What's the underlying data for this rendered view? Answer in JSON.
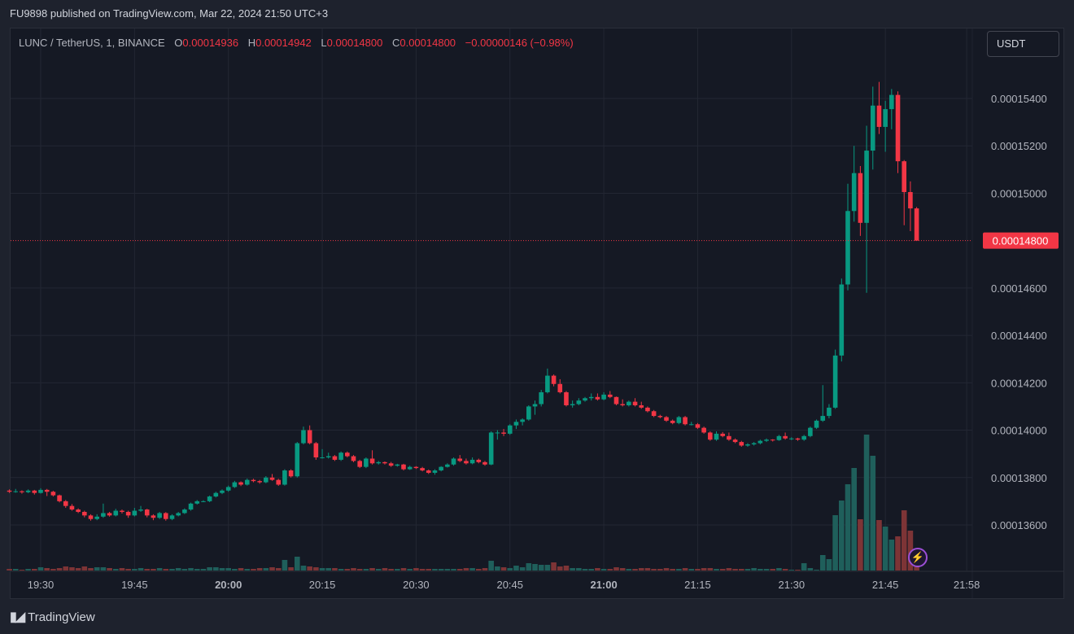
{
  "header": {
    "published": "FU9898 published on TradingView.com, Mar 22, 2024 21:50 UTC+3"
  },
  "legend": {
    "symbol": "LUNC / TetherUS, 1, BINANCE",
    "o_label": "O",
    "o": "0.00014936",
    "h_label": "H",
    "h": "0.00014942",
    "l_label": "L",
    "l": "0.00014800",
    "c_label": "C",
    "c": "0.00014800",
    "change": "−0.00000146 (−0.98%)"
  },
  "currency_button": "USDT",
  "brand": {
    "logo": "TV",
    "name": "TradingView"
  },
  "icons": {
    "alert": "lightning-icon",
    "logo": "tradingview-logo-icon"
  },
  "colors": {
    "up": "#089981",
    "down": "#f23645",
    "up_volume": "#1f5f5b",
    "down_volume": "#7d3436",
    "last_price": "#f23645",
    "background": "#151924",
    "grid": "#232733"
  },
  "chart_data": {
    "type": "candlestick",
    "interval": "1",
    "grid": true,
    "ylim": [
      0.0001341,
      0.000157
    ],
    "xlim": [
      "19:25",
      "21:58"
    ],
    "price_ticks": [
      "0.00015400",
      "0.00015200",
      "0.00015000",
      "0.00014600",
      "0.00014400",
      "0.00014200",
      "0.00014000",
      "0.00013800",
      "0.00013600"
    ],
    "time_ticks": [
      {
        "label": "19:30",
        "bold": false
      },
      {
        "label": "19:45",
        "bold": false
      },
      {
        "label": "20:00",
        "bold": true
      },
      {
        "label": "20:15",
        "bold": false
      },
      {
        "label": "20:30",
        "bold": false
      },
      {
        "label": "20:45",
        "bold": false
      },
      {
        "label": "21:00",
        "bold": true
      },
      {
        "label": "21:15",
        "bold": false
      },
      {
        "label": "21:30",
        "bold": false
      },
      {
        "label": "21:45",
        "bold": false
      },
      {
        "label": "21:58",
        "bold": false
      }
    ],
    "last_price": "0.00014800",
    "candle_fields": [
      "time",
      "open",
      "high",
      "low",
      "close",
      "volume"
    ],
    "candles": [
      [
        "19:25",
        0.00013745,
        0.0001375,
        0.00013735,
        0.0001374,
        2
      ],
      [
        "19:26",
        0.0001374,
        0.00013752,
        0.00013736,
        0.00013742,
        2
      ],
      [
        "19:27",
        0.00013742,
        0.00013746,
        0.00013732,
        0.00013738,
        1
      ],
      [
        "19:28",
        0.00013738,
        0.0001375,
        0.00013734,
        0.00013745,
        2
      ],
      [
        "19:29",
        0.00013745,
        0.00013748,
        0.00013728,
        0.00013735,
        2
      ],
      [
        "19:30",
        0.00013735,
        0.00013755,
        0.00013732,
        0.00013748,
        4
      ],
      [
        "19:31",
        0.00013748,
        0.00013752,
        0.00013722,
        0.0001374,
        3
      ],
      [
        "19:32",
        0.0001374,
        0.00013744,
        0.0001372,
        0.00013725,
        2
      ],
      [
        "19:33",
        0.00013725,
        0.00013728,
        0.00013695,
        0.000137,
        3
      ],
      [
        "19:34",
        0.000137,
        0.00013705,
        0.00013672,
        0.0001368,
        5
      ],
      [
        "19:35",
        0.0001368,
        0.00013688,
        0.0001366,
        0.00013665,
        4
      ],
      [
        "19:36",
        0.00013665,
        0.0001367,
        0.0001365,
        0.00013655,
        3
      ],
      [
        "19:37",
        0.00013655,
        0.0001366,
        0.00013632,
        0.0001364,
        5
      ],
      [
        "19:38",
        0.0001364,
        0.00013645,
        0.00013618,
        0.00013625,
        3
      ],
      [
        "19:39",
        0.00013625,
        0.00013645,
        0.0001362,
        0.00013635,
        4
      ],
      [
        "19:40",
        0.00013635,
        0.0001369,
        0.0001363,
        0.0001365,
        4
      ],
      [
        "19:41",
        0.0001365,
        0.00013655,
        0.00013635,
        0.0001364,
        3
      ],
      [
        "19:42",
        0.0001364,
        0.00013668,
        0.00013636,
        0.0001366,
        2
      ],
      [
        "19:43",
        0.0001366,
        0.00013665,
        0.00013648,
        0.00013655,
        3
      ],
      [
        "19:44",
        0.00013655,
        0.0001366,
        0.0001363,
        0.0001364,
        2
      ],
      [
        "19:45",
        0.0001364,
        0.00013672,
        0.00013636,
        0.0001366,
        2
      ],
      [
        "19:46",
        0.0001366,
        0.0001368,
        0.00013655,
        0.00013665,
        3
      ],
      [
        "19:47",
        0.00013665,
        0.00013668,
        0.00013632,
        0.0001364,
        2
      ],
      [
        "19:48",
        0.0001364,
        0.00013645,
        0.0001362,
        0.0001363,
        2
      ],
      [
        "19:49",
        0.0001363,
        0.00013655,
        0.00013625,
        0.0001365,
        3
      ],
      [
        "19:50",
        0.0001365,
        0.00013654,
        0.00013618,
        0.00013625,
        2
      ],
      [
        "19:51",
        0.00013625,
        0.00013645,
        0.0001362,
        0.0001364,
        2
      ],
      [
        "19:52",
        0.0001364,
        0.00013655,
        0.00013636,
        0.0001365,
        3
      ],
      [
        "19:53",
        0.0001365,
        0.0001367,
        0.00013646,
        0.00013665,
        2
      ],
      [
        "19:54",
        0.00013665,
        0.00013694,
        0.0001366,
        0.0001369,
        3
      ],
      [
        "19:55",
        0.0001369,
        0.00013705,
        0.00013686,
        0.000137,
        2
      ],
      [
        "19:56",
        0.000137,
        0.00013704,
        0.00013696,
        0.000137,
        2
      ],
      [
        "19:57",
        0.000137,
        0.00013724,
        0.00013696,
        0.0001372,
        4
      ],
      [
        "19:58",
        0.0001372,
        0.0001374,
        0.00013716,
        0.00013735,
        4
      ],
      [
        "19:59",
        0.00013735,
        0.0001375,
        0.0001373,
        0.00013745,
        3
      ],
      [
        "20:00",
        0.00013745,
        0.00013766,
        0.0001374,
        0.0001376,
        3
      ],
      [
        "20:01",
        0.0001376,
        0.00013786,
        0.00013756,
        0.0001378,
        2
      ],
      [
        "20:02",
        0.0001378,
        0.00013784,
        0.00013764,
        0.0001377,
        3
      ],
      [
        "20:03",
        0.0001377,
        0.00013796,
        0.00013766,
        0.0001379,
        2
      ],
      [
        "20:04",
        0.0001379,
        0.00013795,
        0.0001378,
        0.00013785,
        2
      ],
      [
        "20:05",
        0.00013785,
        0.0001379,
        0.00013774,
        0.0001378,
        3
      ],
      [
        "20:06",
        0.0001378,
        0.00013806,
        0.00013776,
        0.000138,
        3
      ],
      [
        "20:07",
        0.000138,
        0.00013815,
        0.00013786,
        0.0001379,
        4
      ],
      [
        "20:08",
        0.0001379,
        0.00013795,
        0.00013765,
        0.0001377,
        3
      ],
      [
        "20:09",
        0.0001377,
        0.00013835,
        0.00013766,
        0.0001383,
        13
      ],
      [
        "20:10",
        0.0001383,
        0.00013835,
        0.000138,
        0.00013805,
        4
      ],
      [
        "20:11",
        0.00013805,
        0.0001395,
        0.000138,
        0.00013945,
        17
      ],
      [
        "20:12",
        0.00013945,
        0.00014015,
        0.0001394,
        0.00014,
        6
      ],
      [
        "20:13",
        0.00014,
        0.0001402,
        0.0001394,
        0.00013945,
        5
      ],
      [
        "20:14",
        0.00013945,
        0.0001395,
        0.00013875,
        0.00013885,
        4
      ],
      [
        "20:15",
        0.00013885,
        0.0001392,
        0.0001388,
        0.00013885,
        3
      ],
      [
        "20:16",
        0.00013885,
        0.00013905,
        0.0001388,
        0.0001389,
        3
      ],
      [
        "20:17",
        0.0001389,
        0.00013895,
        0.0001387,
        0.00013875,
        3
      ],
      [
        "20:18",
        0.00013875,
        0.0001391,
        0.0001387,
        0.00013905,
        2
      ],
      [
        "20:19",
        0.00013905,
        0.0001391,
        0.00013885,
        0.0001389,
        2
      ],
      [
        "20:20",
        0.0001389,
        0.00013895,
        0.00013865,
        0.0001387,
        3
      ],
      [
        "20:21",
        0.0001387,
        0.00013875,
        0.0001384,
        0.00013845,
        2
      ],
      [
        "20:22",
        0.00013845,
        0.00013885,
        0.0001384,
        0.0001388,
        2
      ],
      [
        "20:23",
        0.0001388,
        0.00013915,
        0.00013855,
        0.0001386,
        3
      ],
      [
        "20:24",
        0.0001386,
        0.0001387,
        0.00013855,
        0.00013865,
        2
      ],
      [
        "20:25",
        0.00013865,
        0.00013868,
        0.00013855,
        0.0001386,
        3
      ],
      [
        "20:26",
        0.0001386,
        0.00013866,
        0.00013845,
        0.0001385,
        2
      ],
      [
        "20:27",
        0.0001385,
        0.00013858,
        0.00013846,
        0.00013855,
        2
      ],
      [
        "20:28",
        0.00013855,
        0.00013858,
        0.0001383,
        0.00013835,
        3
      ],
      [
        "20:29",
        0.00013835,
        0.0001385,
        0.00013832,
        0.00013845,
        2
      ],
      [
        "20:30",
        0.00013845,
        0.00013848,
        0.00013836,
        0.0001384,
        3
      ],
      [
        "20:31",
        0.0001384,
        0.00013845,
        0.00013826,
        0.0001383,
        2
      ],
      [
        "20:32",
        0.0001383,
        0.00013834,
        0.00013815,
        0.0001382,
        2
      ],
      [
        "20:33",
        0.0001382,
        0.00013835,
        0.00013812,
        0.0001383,
        2
      ],
      [
        "20:34",
        0.0001383,
        0.00013848,
        0.00013826,
        0.00013845,
        2
      ],
      [
        "20:35",
        0.00013845,
        0.0001386,
        0.00013842,
        0.00013855,
        2
      ],
      [
        "20:36",
        0.00013855,
        0.00013885,
        0.0001385,
        0.0001388,
        2
      ],
      [
        "20:37",
        0.0001388,
        0.00013895,
        0.00013865,
        0.0001387,
        2
      ],
      [
        "20:38",
        0.0001387,
        0.0001388,
        0.00013855,
        0.0001386,
        3
      ],
      [
        "20:39",
        0.0001386,
        0.00013885,
        0.00013856,
        0.00013875,
        3
      ],
      [
        "20:40",
        0.00013875,
        0.0001388,
        0.0001386,
        0.00013865,
        2
      ],
      [
        "20:41",
        0.00013865,
        0.0001387,
        0.0001385,
        0.00013855,
        3
      ],
      [
        "20:42",
        0.00013855,
        0.00013995,
        0.00013852,
        0.0001399,
        12
      ],
      [
        "20:43",
        0.0001399,
        0.00014,
        0.0001396,
        0.0001399,
        5
      ],
      [
        "20:44",
        0.0001399,
        0.00014005,
        0.00013975,
        0.00013985,
        4
      ],
      [
        "20:45",
        0.00013985,
        0.00014025,
        0.0001398,
        0.0001402,
        3
      ],
      [
        "20:46",
        0.0001402,
        0.00014045,
        0.00014005,
        0.00014035,
        6
      ],
      [
        "20:47",
        0.00014035,
        0.0001405,
        0.0001402,
        0.00014045,
        4
      ],
      [
        "20:48",
        0.00014045,
        0.00014105,
        0.0001404,
        0.000141,
        9
      ],
      [
        "20:49",
        0.000141,
        0.00014125,
        0.00014065,
        0.0001411,
        8
      ],
      [
        "20:50",
        0.0001411,
        0.0001417,
        0.000141,
        0.0001416,
        7
      ],
      [
        "20:51",
        0.0001416,
        0.0001426,
        0.00014155,
        0.0001423,
        7
      ],
      [
        "20:52",
        0.0001423,
        0.00014235,
        0.00014185,
        0.00014195,
        10
      ],
      [
        "20:53",
        0.00014195,
        0.00014215,
        0.00014155,
        0.0001416,
        5
      ],
      [
        "20:54",
        0.0001416,
        0.00014165,
        0.000141,
        0.00014105,
        6
      ],
      [
        "20:55",
        0.00014105,
        0.00014125,
        0.00014095,
        0.0001411,
        3
      ],
      [
        "20:56",
        0.0001411,
        0.00014135,
        0.00014105,
        0.00014125,
        3
      ],
      [
        "20:57",
        0.00014125,
        0.0001414,
        0.0001412,
        0.00014135,
        2
      ],
      [
        "20:58",
        0.00014135,
        0.00014155,
        0.00014125,
        0.0001414,
        2
      ],
      [
        "20:59",
        0.0001414,
        0.00014155,
        0.00014125,
        0.0001413,
        3
      ],
      [
        "21:00",
        0.0001413,
        0.0001416,
        0.00014126,
        0.0001415,
        2
      ],
      [
        "21:01",
        0.0001415,
        0.00014165,
        0.00014135,
        0.0001414,
        2
      ],
      [
        "21:02",
        0.0001414,
        0.00014142,
        0.00014105,
        0.0001411,
        4
      ],
      [
        "21:03",
        0.0001411,
        0.0001413,
        0.000141,
        0.00014105,
        3
      ],
      [
        "21:04",
        0.00014105,
        0.00014125,
        0.000141,
        0.0001412,
        2
      ],
      [
        "21:05",
        0.0001412,
        0.00014135,
        0.000141,
        0.00014105,
        2
      ],
      [
        "21:06",
        0.00014105,
        0.0001412,
        0.0001409,
        0.00014095,
        3
      ],
      [
        "21:07",
        0.00014095,
        0.000141,
        0.00014075,
        0.0001408,
        3
      ],
      [
        "21:08",
        0.0001408,
        0.00014085,
        0.00014055,
        0.0001406,
        2
      ],
      [
        "21:09",
        0.0001406,
        0.00014065,
        0.0001405,
        0.00014055,
        2
      ],
      [
        "21:10",
        0.00014055,
        0.0001406,
        0.00014035,
        0.0001404,
        3
      ],
      [
        "21:11",
        0.0001404,
        0.00014045,
        0.00014025,
        0.0001403,
        2
      ],
      [
        "21:12",
        0.0001403,
        0.0001406,
        0.00014025,
        0.00014055,
        2
      ],
      [
        "21:13",
        0.00014055,
        0.0001406,
        0.0001402,
        0.00014025,
        3
      ],
      [
        "21:14",
        0.00014025,
        0.00014035,
        0.0001402,
        0.00014025,
        2
      ],
      [
        "21:15",
        0.00014025,
        0.0001403,
        0.00014005,
        0.0001401,
        2
      ],
      [
        "21:16",
        0.0001401,
        0.00014015,
        0.00013985,
        0.0001399,
        3
      ],
      [
        "21:17",
        0.0001399,
        0.00013995,
        0.00013955,
        0.0001396,
        3
      ],
      [
        "21:18",
        0.0001396,
        0.00013995,
        0.00013955,
        0.00013985,
        2
      ],
      [
        "21:19",
        0.00013985,
        0.00013992,
        0.0001397,
        0.00013975,
        2
      ],
      [
        "21:20",
        0.00013975,
        0.0001399,
        0.00013955,
        0.0001396,
        3
      ],
      [
        "21:21",
        0.0001396,
        0.00013965,
        0.00013945,
        0.0001395,
        2
      ],
      [
        "21:22",
        0.0001395,
        0.00013955,
        0.0001393,
        0.00013935,
        2
      ],
      [
        "21:23",
        0.00013935,
        0.00013945,
        0.0001393,
        0.0001394,
        2
      ],
      [
        "21:24",
        0.0001394,
        0.0001395,
        0.00013935,
        0.00013945,
        3
      ],
      [
        "21:25",
        0.00013945,
        0.0001396,
        0.0001394,
        0.00013955,
        2
      ],
      [
        "21:26",
        0.00013955,
        0.00013965,
        0.0001395,
        0.0001396,
        2
      ],
      [
        "21:27",
        0.0001396,
        0.00013962,
        0.00013952,
        0.00013958,
        2
      ],
      [
        "21:28",
        0.00013958,
        0.0001398,
        0.00013955,
        0.00013975,
        3
      ],
      [
        "21:29",
        0.00013975,
        0.0001399,
        0.0001396,
        0.00013965,
        2
      ],
      [
        "21:30",
        0.00013965,
        0.0001397,
        0.00013958,
        0.00013965,
        1
      ],
      [
        "21:31",
        0.00013965,
        0.00013968,
        0.00013955,
        0.0001396,
        1
      ],
      [
        "21:32",
        0.0001396,
        0.0001398,
        0.00013955,
        0.00013975,
        9
      ],
      [
        "21:33",
        0.00013975,
        0.00014015,
        0.0001397,
        0.0001401,
        3
      ],
      [
        "21:34",
        0.0001401,
        0.00014045,
        0.00014005,
        0.0001404,
        1
      ],
      [
        "21:35",
        0.0001404,
        0.0001419,
        0.00014035,
        0.0001406,
        19
      ],
      [
        "21:36",
        0.0001406,
        0.0001411,
        0.0001405,
        0.00014095,
        14
      ],
      [
        "21:37",
        0.00014095,
        0.0001434,
        0.0001409,
        0.00014315,
        68
      ],
      [
        "21:38",
        0.00014315,
        0.0001464,
        0.0001429,
        0.00014615,
        86
      ],
      [
        "21:39",
        0.00014615,
        0.0001504,
        0.0001459,
        0.00014925,
        106
      ],
      [
        "21:40",
        0.00014925,
        0.000152,
        0.0001488,
        0.00015085,
        126
      ],
      [
        "21:41",
        0.00015085,
        0.00015115,
        0.0001482,
        0.00014875,
        63
      ],
      [
        "21:42",
        0.00014875,
        0.00015285,
        0.0001458,
        0.0001518,
        167
      ],
      [
        "21:43",
        0.0001518,
        0.0001545,
        0.000151,
        0.0001537,
        141
      ],
      [
        "21:44",
        0.0001537,
        0.0001547,
        0.0001525,
        0.0001528,
        62
      ],
      [
        "21:45",
        0.0001528,
        0.0001539,
        0.00015175,
        0.00015355,
        54
      ],
      [
        "21:46",
        0.00015355,
        0.0001544,
        0.0001527,
        0.00015415,
        38
      ],
      [
        "21:47",
        0.00015415,
        0.0001543,
        0.00015085,
        0.00015135,
        42
      ],
      [
        "21:48",
        0.00015135,
        0.0001514,
        0.00014865,
        0.00015005,
        74
      ],
      [
        "21:49",
        0.00015005,
        0.0001505,
        0.0001484,
        0.00014936,
        49
      ],
      [
        "21:50",
        0.00014936,
        0.00014942,
        0.000148,
        0.000148,
        5
      ]
    ]
  }
}
